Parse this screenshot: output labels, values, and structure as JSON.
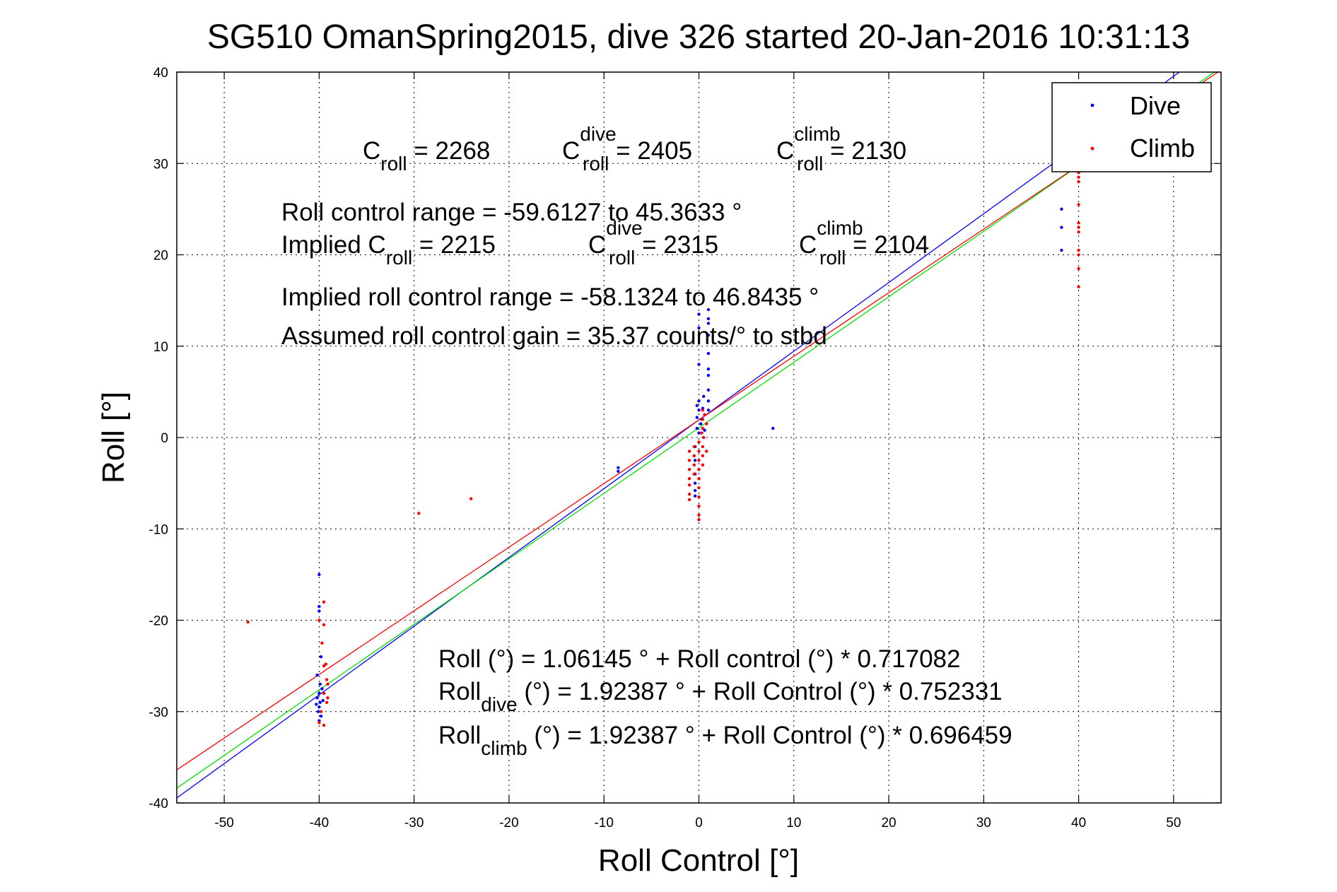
{
  "chart_data": {
    "type": "scatter",
    "title": "SG510 OmanSpring2015, dive 326 started 20-Jan-2016 10:31:13",
    "xlabel": "Roll Control [°]",
    "ylabel": "Roll [°]",
    "xlim": [
      -55,
      55
    ],
    "ylim": [
      -40,
      40
    ],
    "xticks": [
      -50,
      -40,
      -30,
      -20,
      -10,
      0,
      10,
      20,
      30,
      40,
      50
    ],
    "yticks": [
      -40,
      -30,
      -20,
      -10,
      0,
      10,
      20,
      30,
      40
    ],
    "grid": true,
    "legend_position": "top-right",
    "series": [
      {
        "name": "Dive",
        "color": "#0000ff",
        "points": [
          [
            -40,
            -15
          ],
          [
            -40,
            -18.5
          ],
          [
            -40,
            -19
          ],
          [
            -39.8,
            -24
          ],
          [
            -40.2,
            -26
          ],
          [
            -39.7,
            -27.5
          ],
          [
            -40,
            -28
          ],
          [
            -40.2,
            -28.5
          ],
          [
            -39.9,
            -29
          ],
          [
            -40,
            -29.5
          ],
          [
            -40.1,
            -30
          ],
          [
            -39.8,
            -30.5
          ],
          [
            -40,
            -31
          ],
          [
            -39.6,
            -28.8
          ],
          [
            -40.3,
            -29.2
          ],
          [
            -39.9,
            -27
          ],
          [
            -8.5,
            -3.3
          ],
          [
            -8.5,
            -3.7
          ],
          [
            -0.4,
            -1
          ],
          [
            -0.4,
            -2.5
          ],
          [
            -0.4,
            -4
          ],
          [
            -0.4,
            -5
          ],
          [
            -0.4,
            -5.8
          ],
          [
            -0.4,
            -6.4
          ],
          [
            -0.2,
            1
          ],
          [
            -0.2,
            3.5
          ],
          [
            -0.2,
            2.2
          ],
          [
            0,
            0.5
          ],
          [
            0,
            13.5
          ],
          [
            0,
            12
          ],
          [
            0,
            8
          ],
          [
            0,
            4
          ],
          [
            0,
            3
          ],
          [
            0.3,
            2
          ],
          [
            0.4,
            3.2
          ],
          [
            0.5,
            4.5
          ],
          [
            0.2,
            1.5
          ],
          [
            0.6,
            0.8
          ],
          [
            1,
            14
          ],
          [
            1,
            13
          ],
          [
            1,
            12.5
          ],
          [
            1,
            11.2
          ],
          [
            1,
            9.2
          ],
          [
            1,
            7.5
          ],
          [
            1,
            6.8
          ],
          [
            1,
            5.2
          ],
          [
            1,
            4
          ],
          [
            1,
            3
          ],
          [
            7.8,
            1
          ],
          [
            38.2,
            25
          ],
          [
            38.2,
            23
          ],
          [
            38.2,
            20.5
          ]
        ]
      },
      {
        "name": "Climb",
        "color": "#ff0000",
        "points": [
          [
            -47.5,
            -20.2
          ],
          [
            -40,
            -20
          ],
          [
            -39.5,
            -18
          ],
          [
            -39.5,
            -20.5
          ],
          [
            -39.7,
            -22.5
          ],
          [
            -39.5,
            -25
          ],
          [
            -39.2,
            -26.5
          ],
          [
            -39.5,
            -28
          ],
          [
            -39.2,
            -29
          ],
          [
            -39.8,
            -30
          ],
          [
            -40,
            -31.2
          ],
          [
            -39.5,
            -31.5
          ],
          [
            -39.1,
            -27
          ],
          [
            -39.3,
            -24.8
          ],
          [
            -39.1,
            -28.5
          ],
          [
            -29.5,
            -8.3
          ],
          [
            -24,
            -6.7
          ],
          [
            -1,
            -1.5
          ],
          [
            -1,
            -2.5
          ],
          [
            -1,
            -3.5
          ],
          [
            -1,
            -4.5
          ],
          [
            -1,
            -5.2
          ],
          [
            -1,
            -6.2
          ],
          [
            -1,
            -6.8
          ],
          [
            -0.5,
            -1
          ],
          [
            -0.5,
            -2
          ],
          [
            -0.5,
            -3
          ],
          [
            -0.5,
            -4
          ],
          [
            0,
            -0.5
          ],
          [
            0,
            -1.5
          ],
          [
            0,
            -2.5
          ],
          [
            0,
            -3.5
          ],
          [
            0,
            -4.5
          ],
          [
            0,
            -5.5
          ],
          [
            0,
            -6.5
          ],
          [
            0,
            -7.5
          ],
          [
            0,
            -8.5
          ],
          [
            0,
            -9
          ],
          [
            0.4,
            -1
          ],
          [
            0.4,
            -2
          ],
          [
            0.4,
            -3
          ],
          [
            0.4,
            1
          ],
          [
            0.4,
            2
          ],
          [
            0.4,
            3
          ],
          [
            0.8,
            -1.5
          ],
          [
            0.8,
            1.5
          ],
          [
            0.6,
            2.5
          ],
          [
            0.3,
            0.5
          ],
          [
            0.5,
            0
          ],
          [
            40,
            29
          ],
          [
            40,
            28.5
          ],
          [
            40,
            28
          ],
          [
            40,
            25.5
          ],
          [
            40,
            23.5
          ],
          [
            40,
            23
          ],
          [
            40,
            22.5
          ],
          [
            40,
            20.5
          ],
          [
            40,
            20
          ],
          [
            40,
            18.5
          ],
          [
            40,
            16.5
          ]
        ]
      }
    ],
    "fit_lines": [
      {
        "color": "#0000ff",
        "intercept": 1.92387,
        "slope": 0.752331
      },
      {
        "color": "#00e000",
        "intercept": 1.06145,
        "slope": 0.717082
      },
      {
        "color": "#ff0000",
        "intercept": 1.92387,
        "slope": 0.696459
      }
    ],
    "annotations": [
      {
        "key": "croll_line",
        "parts": [
          {
            "t": "C",
            "s": "n"
          },
          {
            "t": "roll",
            "s": "sub"
          },
          {
            "t": " = 2268",
            "s": "n"
          }
        ],
        "x": 513,
        "y": 225
      },
      {
        "key": "croll_dive",
        "parts": [
          {
            "t": "C",
            "s": "n"
          },
          {
            "t": "dive",
            "s": "sup"
          },
          {
            "t": "roll",
            "s": "sub"
          },
          {
            "t": " = 2405",
            "s": "n"
          }
        ],
        "x": 795,
        "y": 225
      },
      {
        "key": "croll_climb",
        "parts": [
          {
            "t": "C",
            "s": "n"
          },
          {
            "t": "climb",
            "s": "sup"
          },
          {
            "t": "roll",
            "s": "sub"
          },
          {
            "t": " = 2130",
            "s": "n"
          }
        ],
        "x": 1098,
        "y": 225
      }
    ],
    "text": {
      "roll_control_range": "Roll control range = -59.6127 to 45.3633 °",
      "implied_c": "Implied C",
      "implied_c_sub": "roll",
      "implied_c_val": " = 2215",
      "implied_dive_c": "C",
      "implied_dive_sup": "dive",
      "implied_dive_sub": "roll",
      "implied_dive_val": " = 2315",
      "implied_climb_c": "C",
      "implied_climb_sup": "climb",
      "implied_climb_sub": "roll",
      "implied_climb_val": " = 2104",
      "implied_range": "Implied roll control range = -58.1324 to 46.8435 °",
      "gain": "Assumed roll control gain = 35.37 counts/° to stbd",
      "eq_all": "Roll (°) = 1.06145 ° + Roll control (°) * 0.717082",
      "eq_dive_a": "Roll",
      "eq_dive_sub": "dive",
      "eq_dive_b": " (°) = 1.92387 ° + Roll Control (°) * 0.752331",
      "eq_climb_a": "Roll",
      "eq_climb_sub": "climb",
      "eq_climb_b": " (°) = 1.92387 ° + Roll Control (°) * 0.696459"
    }
  }
}
